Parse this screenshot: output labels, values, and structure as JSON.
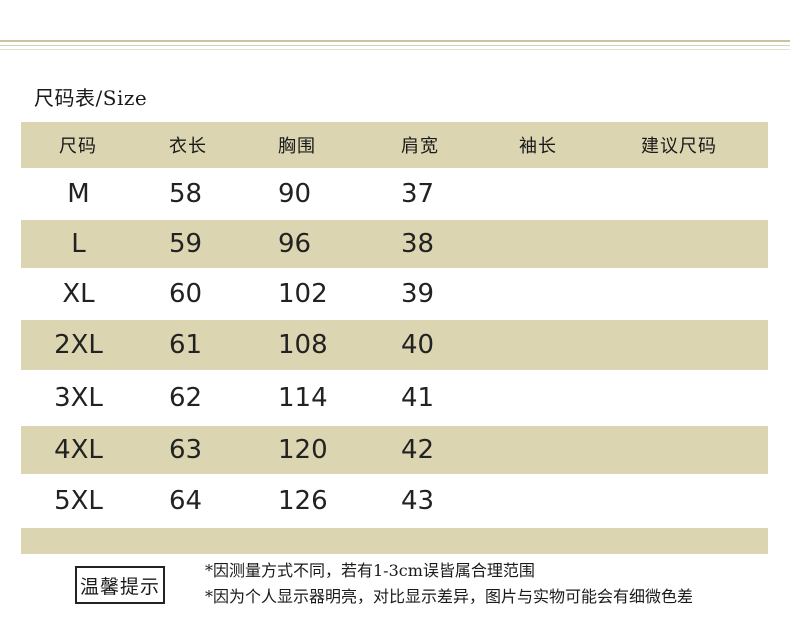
{
  "title": "尺码表/Size",
  "table": {
    "headers": [
      "尺码",
      "衣长",
      "胸围",
      "肩宽",
      "袖长",
      "建议尺码"
    ],
    "rows": [
      [
        "M",
        "58",
        "90",
        "37",
        "",
        ""
      ],
      [
        "L",
        "59",
        "96",
        "38",
        "",
        ""
      ],
      [
        "XL",
        "60",
        "102",
        "39",
        "",
        ""
      ],
      [
        "2XL",
        "61",
        "108",
        "40",
        "",
        ""
      ],
      [
        "3XL",
        "62",
        "114",
        "41",
        "",
        ""
      ],
      [
        "4XL",
        "63",
        "120",
        "42",
        "",
        ""
      ],
      [
        "5XL",
        "64",
        "126",
        "43",
        "",
        ""
      ]
    ]
  },
  "notice": {
    "label": "温馨提示",
    "lines": [
      "*因测量方式不同，若有1-3cm误皆属合理范围",
      "*因为个人显示器明亮，对比显示差异，图片与实物可能会有细微色差"
    ]
  },
  "colors": {
    "band": "#dbd5b2",
    "line": "#c9c4a6"
  }
}
